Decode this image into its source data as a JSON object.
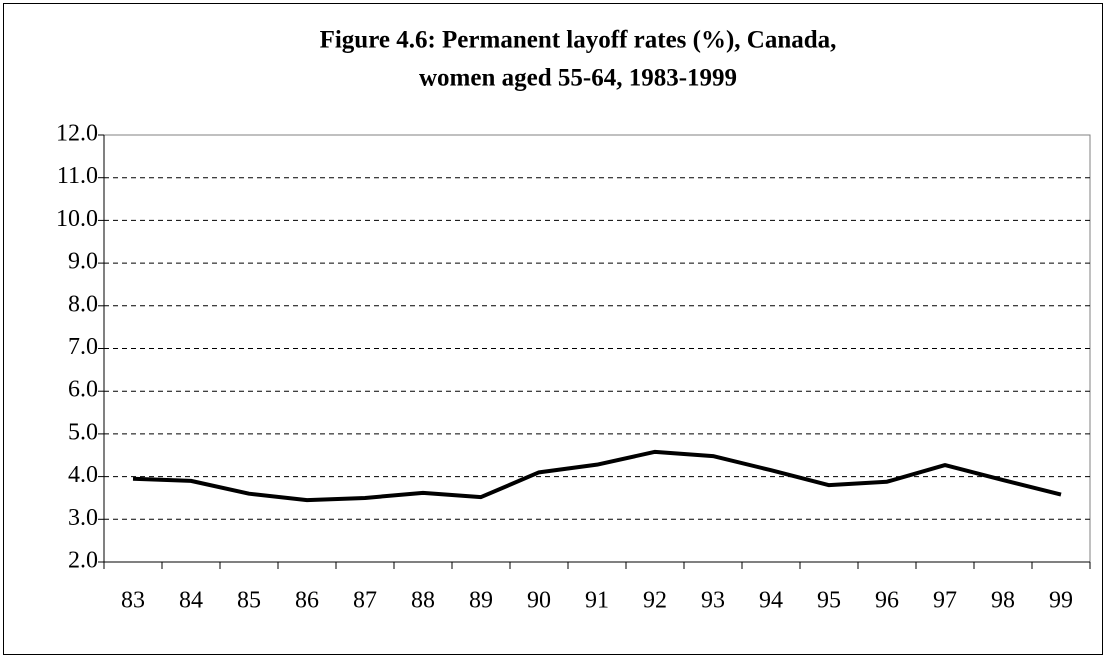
{
  "chart_data": {
    "type": "line",
    "title": [
      "Figure 4.6: Permanent layoff rates (%), Canada,",
      "women aged 55-64, 1983-1999"
    ],
    "categories": [
      "83",
      "84",
      "85",
      "86",
      "87",
      "88",
      "89",
      "90",
      "91",
      "92",
      "93",
      "94",
      "95",
      "96",
      "97",
      "98",
      "99"
    ],
    "series": [
      {
        "color": "#000000",
        "values": [
          3.95,
          3.9,
          3.6,
          3.45,
          3.5,
          3.62,
          3.52,
          4.1,
          4.28,
          4.58,
          4.48,
          4.15,
          3.8,
          3.88,
          4.27,
          3.92,
          3.58
        ]
      }
    ],
    "ylim": [
      2,
      12
    ],
    "yticks": [
      {
        "value": 2,
        "label": "2.0"
      },
      {
        "value": 3,
        "label": "3.0"
      },
      {
        "value": 4,
        "label": "4.0"
      },
      {
        "value": 5,
        "label": "5.0"
      },
      {
        "value": 6,
        "label": "6.0"
      },
      {
        "value": 7,
        "label": "7.0"
      },
      {
        "value": 8,
        "label": "8.0"
      },
      {
        "value": 9,
        "label": "9.0"
      },
      {
        "value": 10,
        "label": "10.0"
      },
      {
        "value": 11,
        "label": "11.0"
      },
      {
        "value": 12,
        "label": "12.0"
      }
    ],
    "grid": true
  }
}
